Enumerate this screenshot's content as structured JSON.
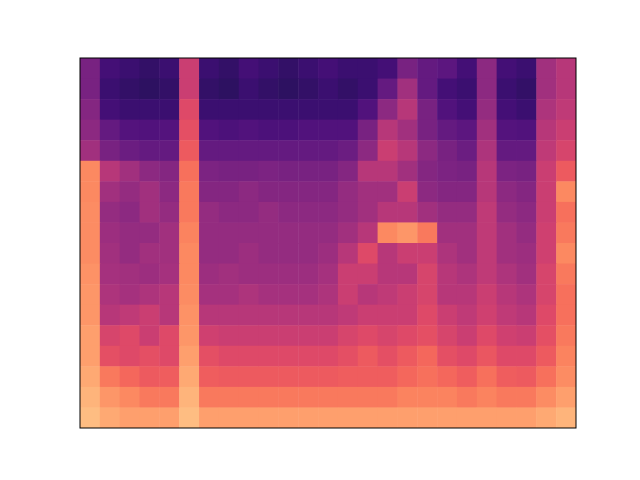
{
  "chart_data": {
    "type": "heatmap",
    "color": "magma",
    "tick_labels": false,
    "zlim": [
      0,
      1
    ],
    "z": [
      [
        0.35,
        0.22,
        0.2,
        0.18,
        0.2,
        0.55,
        0.2,
        0.18,
        0.22,
        0.2,
        0.18,
        0.2,
        0.22,
        0.2,
        0.2,
        0.22,
        0.35,
        0.3,
        0.28,
        0.22,
        0.4,
        0.22,
        0.2,
        0.45,
        0.5
      ],
      [
        0.35,
        0.2,
        0.18,
        0.17,
        0.18,
        0.55,
        0.18,
        0.17,
        0.2,
        0.18,
        0.17,
        0.18,
        0.2,
        0.18,
        0.2,
        0.3,
        0.45,
        0.3,
        0.22,
        0.2,
        0.4,
        0.2,
        0.18,
        0.45,
        0.5
      ],
      [
        0.38,
        0.22,
        0.2,
        0.2,
        0.2,
        0.6,
        0.2,
        0.2,
        0.2,
        0.2,
        0.2,
        0.2,
        0.2,
        0.2,
        0.25,
        0.4,
        0.5,
        0.35,
        0.25,
        0.22,
        0.42,
        0.22,
        0.2,
        0.48,
        0.52
      ],
      [
        0.4,
        0.3,
        0.26,
        0.25,
        0.26,
        0.62,
        0.25,
        0.24,
        0.25,
        0.24,
        0.24,
        0.25,
        0.25,
        0.25,
        0.35,
        0.5,
        0.45,
        0.35,
        0.3,
        0.28,
        0.45,
        0.26,
        0.25,
        0.5,
        0.55
      ],
      [
        0.45,
        0.35,
        0.32,
        0.3,
        0.3,
        0.65,
        0.3,
        0.3,
        0.3,
        0.3,
        0.3,
        0.3,
        0.3,
        0.32,
        0.4,
        0.55,
        0.5,
        0.4,
        0.35,
        0.32,
        0.48,
        0.3,
        0.3,
        0.52,
        0.58
      ],
      [
        0.75,
        0.5,
        0.45,
        0.4,
        0.38,
        0.7,
        0.36,
        0.35,
        0.35,
        0.36,
        0.35,
        0.35,
        0.35,
        0.38,
        0.5,
        0.5,
        0.45,
        0.38,
        0.36,
        0.35,
        0.5,
        0.36,
        0.35,
        0.55,
        0.65
      ],
      [
        0.75,
        0.45,
        0.42,
        0.45,
        0.4,
        0.72,
        0.38,
        0.38,
        0.4,
        0.38,
        0.38,
        0.38,
        0.38,
        0.42,
        0.45,
        0.45,
        0.55,
        0.4,
        0.38,
        0.38,
        0.5,
        0.4,
        0.38,
        0.55,
        0.75
      ],
      [
        0.76,
        0.42,
        0.4,
        0.45,
        0.42,
        0.72,
        0.42,
        0.4,
        0.4,
        0.42,
        0.4,
        0.4,
        0.4,
        0.42,
        0.45,
        0.5,
        0.5,
        0.45,
        0.42,
        0.42,
        0.52,
        0.42,
        0.4,
        0.55,
        0.7
      ],
      [
        0.76,
        0.44,
        0.42,
        0.42,
        0.45,
        0.74,
        0.42,
        0.42,
        0.42,
        0.42,
        0.42,
        0.42,
        0.42,
        0.45,
        0.5,
        0.75,
        0.78,
        0.72,
        0.45,
        0.45,
        0.52,
        0.45,
        0.42,
        0.56,
        0.72
      ],
      [
        0.76,
        0.45,
        0.42,
        0.45,
        0.45,
        0.75,
        0.42,
        0.42,
        0.44,
        0.42,
        0.42,
        0.42,
        0.44,
        0.5,
        0.6,
        0.5,
        0.55,
        0.55,
        0.48,
        0.45,
        0.52,
        0.45,
        0.44,
        0.56,
        0.75
      ],
      [
        0.77,
        0.46,
        0.45,
        0.44,
        0.46,
        0.75,
        0.44,
        0.45,
        0.44,
        0.44,
        0.44,
        0.44,
        0.46,
        0.55,
        0.55,
        0.5,
        0.5,
        0.58,
        0.5,
        0.48,
        0.52,
        0.48,
        0.45,
        0.58,
        0.72
      ],
      [
        0.78,
        0.48,
        0.46,
        0.48,
        0.5,
        0.76,
        0.46,
        0.46,
        0.48,
        0.46,
        0.46,
        0.46,
        0.48,
        0.55,
        0.5,
        0.52,
        0.55,
        0.58,
        0.5,
        0.5,
        0.55,
        0.5,
        0.48,
        0.58,
        0.7
      ],
      [
        0.78,
        0.5,
        0.52,
        0.55,
        0.5,
        0.77,
        0.5,
        0.5,
        0.5,
        0.5,
        0.5,
        0.5,
        0.5,
        0.52,
        0.55,
        0.55,
        0.55,
        0.6,
        0.55,
        0.52,
        0.56,
        0.52,
        0.5,
        0.6,
        0.7
      ],
      [
        0.8,
        0.58,
        0.6,
        0.55,
        0.6,
        0.78,
        0.56,
        0.55,
        0.55,
        0.55,
        0.55,
        0.55,
        0.55,
        0.58,
        0.6,
        0.58,
        0.6,
        0.62,
        0.58,
        0.55,
        0.6,
        0.56,
        0.55,
        0.62,
        0.72
      ],
      [
        0.8,
        0.62,
        0.6,
        0.62,
        0.6,
        0.8,
        0.62,
        0.6,
        0.6,
        0.6,
        0.6,
        0.6,
        0.6,
        0.62,
        0.65,
        0.62,
        0.65,
        0.68,
        0.62,
        0.6,
        0.64,
        0.6,
        0.6,
        0.65,
        0.74
      ],
      [
        0.82,
        0.72,
        0.68,
        0.65,
        0.66,
        0.82,
        0.66,
        0.65,
        0.65,
        0.65,
        0.65,
        0.65,
        0.65,
        0.66,
        0.66,
        0.66,
        0.68,
        0.7,
        0.68,
        0.66,
        0.7,
        0.66,
        0.65,
        0.7,
        0.76
      ],
      [
        0.84,
        0.78,
        0.75,
        0.72,
        0.72,
        0.84,
        0.72,
        0.72,
        0.72,
        0.72,
        0.72,
        0.72,
        0.72,
        0.72,
        0.72,
        0.72,
        0.74,
        0.74,
        0.74,
        0.72,
        0.74,
        0.72,
        0.72,
        0.76,
        0.8
      ],
      [
        0.86,
        0.82,
        0.8,
        0.8,
        0.8,
        0.86,
        0.8,
        0.8,
        0.8,
        0.8,
        0.8,
        0.8,
        0.8,
        0.8,
        0.8,
        0.8,
        0.8,
        0.8,
        0.8,
        0.8,
        0.8,
        0.8,
        0.8,
        0.82,
        0.84
      ]
    ]
  }
}
